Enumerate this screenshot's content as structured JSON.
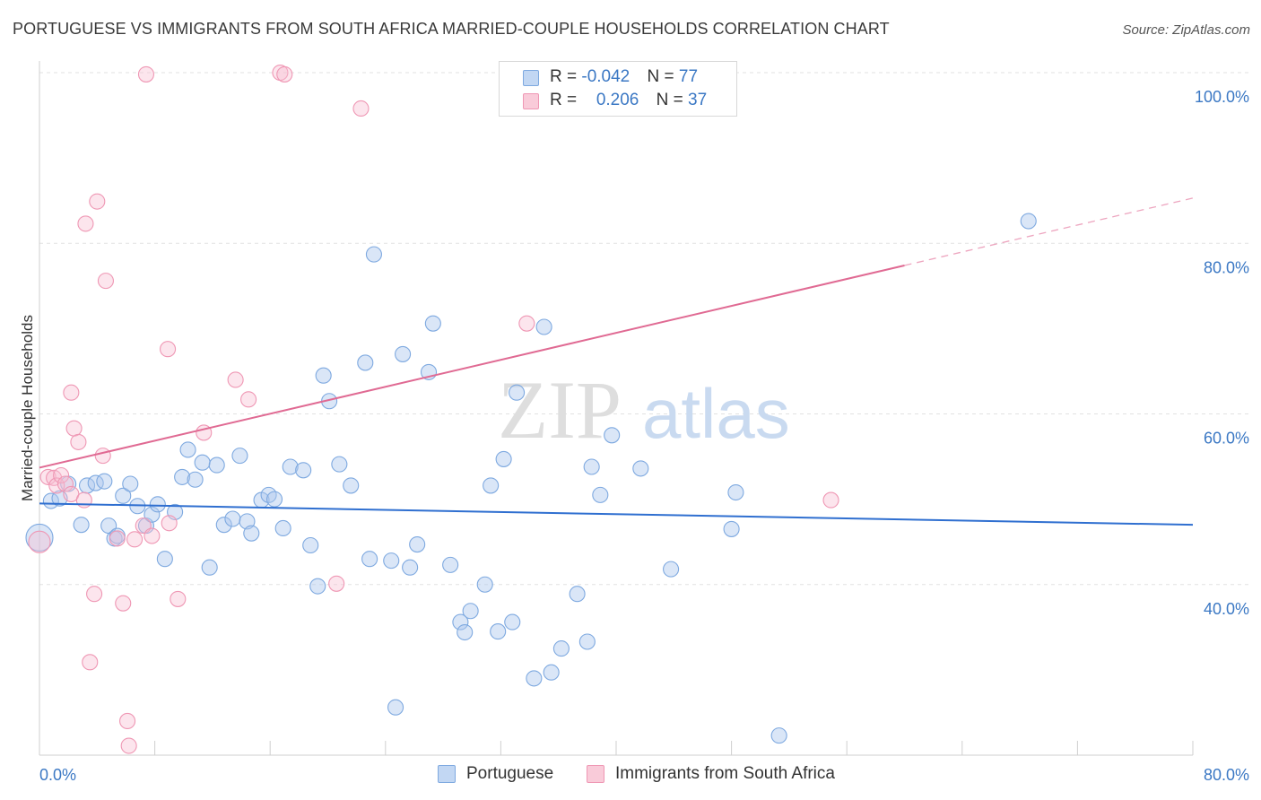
{
  "header": {
    "title": "PORTUGUESE VS IMMIGRANTS FROM SOUTH AFRICA MARRIED-COUPLE HOUSEHOLDS CORRELATION CHART",
    "source": "Source: ZipAtlas.com"
  },
  "legend": {
    "rows": [
      {
        "r_label": "R = ",
        "r_value": "-0.042",
        "n_label": "N = ",
        "n_value": "77"
      },
      {
        "r_label": "R = ",
        "r_value": "0.206",
        "n_label": "N = ",
        "n_value": "37"
      }
    ]
  },
  "watermark": {
    "zip": "ZIP",
    "atlas": "atlas"
  },
  "chart_data": {
    "type": "scatter",
    "title": "PORTUGUESE VS IMMIGRANTS FROM SOUTH AFRICA MARRIED-COUPLE HOUSEHOLDS CORRELATION CHART",
    "xlabel": "",
    "ylabel": "Married-couple Households",
    "xlim": [
      0,
      80
    ],
    "ylim": [
      20,
      102
    ],
    "x_ticks": [
      "0.0%",
      "80.0%"
    ],
    "y_ticks": [
      "40.0%",
      "60.0%",
      "80.0%",
      "100.0%"
    ],
    "y_tick_values": [
      40,
      60,
      80,
      100
    ],
    "grid": true,
    "legend_position": "top-center",
    "colors": {
      "portuguese": "#6fa1dd",
      "south_africa": "#f08fb0",
      "blue_line": "#2f6fd0",
      "pink_line": "#e06a93",
      "axis_text": "#3b78c4"
    },
    "series": [
      {
        "name": "Portuguese",
        "r": -0.042,
        "n": 77,
        "trend": {
          "x0": 0,
          "y0": 49.5,
          "x1": 80,
          "y1": 47.0
        },
        "points": [
          [
            0.0,
            45.5
          ],
          [
            0.8,
            49.8
          ],
          [
            1.4,
            50.1
          ],
          [
            2.0,
            51.8
          ],
          [
            2.9,
            47.0
          ],
          [
            3.3,
            51.6
          ],
          [
            3.9,
            51.9
          ],
          [
            4.5,
            52.1
          ],
          [
            4.8,
            46.9
          ],
          [
            5.2,
            45.4
          ],
          [
            5.8,
            50.4
          ],
          [
            6.3,
            51.8
          ],
          [
            6.8,
            49.2
          ],
          [
            7.4,
            46.9
          ],
          [
            7.8,
            48.2
          ],
          [
            8.2,
            49.4
          ],
          [
            8.7,
            43.0
          ],
          [
            9.4,
            48.5
          ],
          [
            9.9,
            52.6
          ],
          [
            10.3,
            55.8
          ],
          [
            10.8,
            52.3
          ],
          [
            11.3,
            54.3
          ],
          [
            11.8,
            42.0
          ],
          [
            12.3,
            54.0
          ],
          [
            12.8,
            47.0
          ],
          [
            13.4,
            47.7
          ],
          [
            13.9,
            55.1
          ],
          [
            14.4,
            47.4
          ],
          [
            14.7,
            46.0
          ],
          [
            15.4,
            49.9
          ],
          [
            15.9,
            50.5
          ],
          [
            16.3,
            50.0
          ],
          [
            16.9,
            46.6
          ],
          [
            17.4,
            53.8
          ],
          [
            18.3,
            53.4
          ],
          [
            18.8,
            44.6
          ],
          [
            19.3,
            39.8
          ],
          [
            19.7,
            64.5
          ],
          [
            20.1,
            61.5
          ],
          [
            20.8,
            54.1
          ],
          [
            21.6,
            51.6
          ],
          [
            22.6,
            66.0
          ],
          [
            22.9,
            43.0
          ],
          [
            23.2,
            78.7
          ],
          [
            24.4,
            42.8
          ],
          [
            25.2,
            67.0
          ],
          [
            25.7,
            42.0
          ],
          [
            26.2,
            44.7
          ],
          [
            27.0,
            64.9
          ],
          [
            27.3,
            70.6
          ],
          [
            28.5,
            42.3
          ],
          [
            29.2,
            35.6
          ],
          [
            29.5,
            34.4
          ],
          [
            29.9,
            36.9
          ],
          [
            30.9,
            40.0
          ],
          [
            31.3,
            51.6
          ],
          [
            31.8,
            34.5
          ],
          [
            32.2,
            54.7
          ],
          [
            32.8,
            35.6
          ],
          [
            33.1,
            62.5
          ],
          [
            34.3,
            29.0
          ],
          [
            35.0,
            70.2
          ],
          [
            35.5,
            29.7
          ],
          [
            36.2,
            32.5
          ],
          [
            37.3,
            38.9
          ],
          [
            38.0,
            33.3
          ],
          [
            38.3,
            53.8
          ],
          [
            38.9,
            50.5
          ],
          [
            39.7,
            57.5
          ],
          [
            41.7,
            53.6
          ],
          [
            43.8,
            41.8
          ],
          [
            48.0,
            46.5
          ],
          [
            48.3,
            50.8
          ],
          [
            51.3,
            22.3
          ],
          [
            68.6,
            82.6
          ],
          [
            24.7,
            25.6
          ],
          [
            5.4,
            45.7
          ]
        ]
      },
      {
        "name": "Immigrants from South Africa",
        "r": 0.206,
        "n": 37,
        "trend": {
          "x0": 0,
          "y0": 53.7,
          "x1": 60,
          "y1": 77.4,
          "dash_x1": 80,
          "dash_y1": 85.3
        },
        "points": [
          [
            0.0,
            45.0
          ],
          [
            0.6,
            52.6
          ],
          [
            1.0,
            52.5
          ],
          [
            1.2,
            51.6
          ],
          [
            1.5,
            52.8
          ],
          [
            1.8,
            51.8
          ],
          [
            2.2,
            50.6
          ],
          [
            2.2,
            62.5
          ],
          [
            2.4,
            58.3
          ],
          [
            2.7,
            56.7
          ],
          [
            3.1,
            49.9
          ],
          [
            3.2,
            82.3
          ],
          [
            3.5,
            30.9
          ],
          [
            3.8,
            38.9
          ],
          [
            4.0,
            84.9
          ],
          [
            4.4,
            55.1
          ],
          [
            4.6,
            75.6
          ],
          [
            5.4,
            45.4
          ],
          [
            5.8,
            37.8
          ],
          [
            6.1,
            24.0
          ],
          [
            6.2,
            21.1
          ],
          [
            6.6,
            45.3
          ],
          [
            7.2,
            46.9
          ],
          [
            7.4,
            99.8
          ],
          [
            7.8,
            45.7
          ],
          [
            8.9,
            67.6
          ],
          [
            9.0,
            47.2
          ],
          [
            9.6,
            38.3
          ],
          [
            11.4,
            57.8
          ],
          [
            13.6,
            64.0
          ],
          [
            14.5,
            61.7
          ],
          [
            16.7,
            100.0
          ],
          [
            17.0,
            99.8
          ],
          [
            20.6,
            40.1
          ],
          [
            22.3,
            95.8
          ],
          [
            33.8,
            70.6
          ],
          [
            54.9,
            49.9
          ]
        ]
      }
    ]
  }
}
